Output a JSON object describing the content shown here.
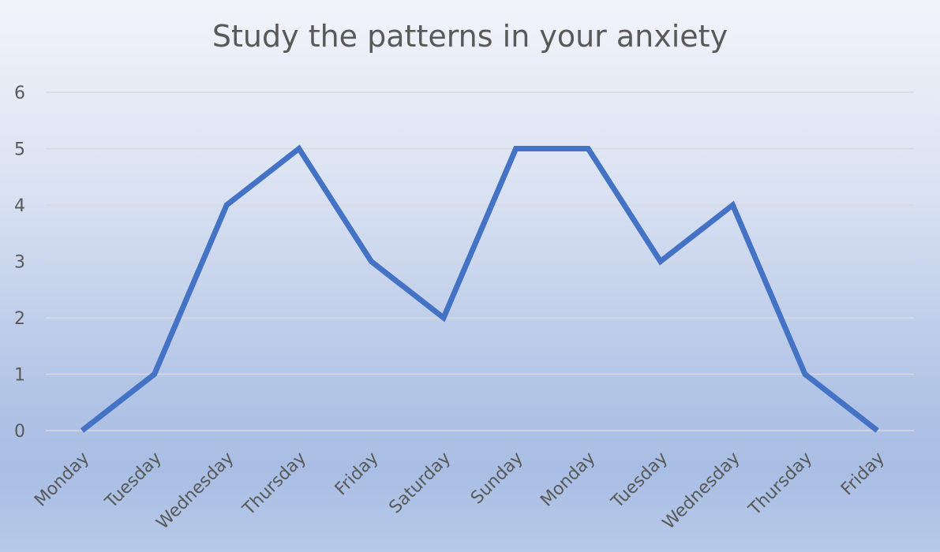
{
  "chart_data": {
    "type": "line",
    "title": "Study the patterns in your anxiety",
    "xlabel": "",
    "ylabel": "",
    "categories": [
      "Monday",
      "Tuesday",
      "Wednesday",
      "Thursday",
      "Friday",
      "Saturday",
      "Sunday",
      "Monday",
      "Tuesday",
      "Wednesday",
      "Thursday",
      "Friday"
    ],
    "series": [
      {
        "values": [
          0,
          1,
          4,
          5,
          3,
          2,
          5,
          5,
          3,
          4,
          1,
          0
        ],
        "color": "#4472c4"
      }
    ],
    "ylim": [
      0,
      6
    ],
    "yticks": [
      0,
      1,
      2,
      3,
      4,
      5,
      6
    ],
    "grid": true,
    "legend": "none"
  }
}
